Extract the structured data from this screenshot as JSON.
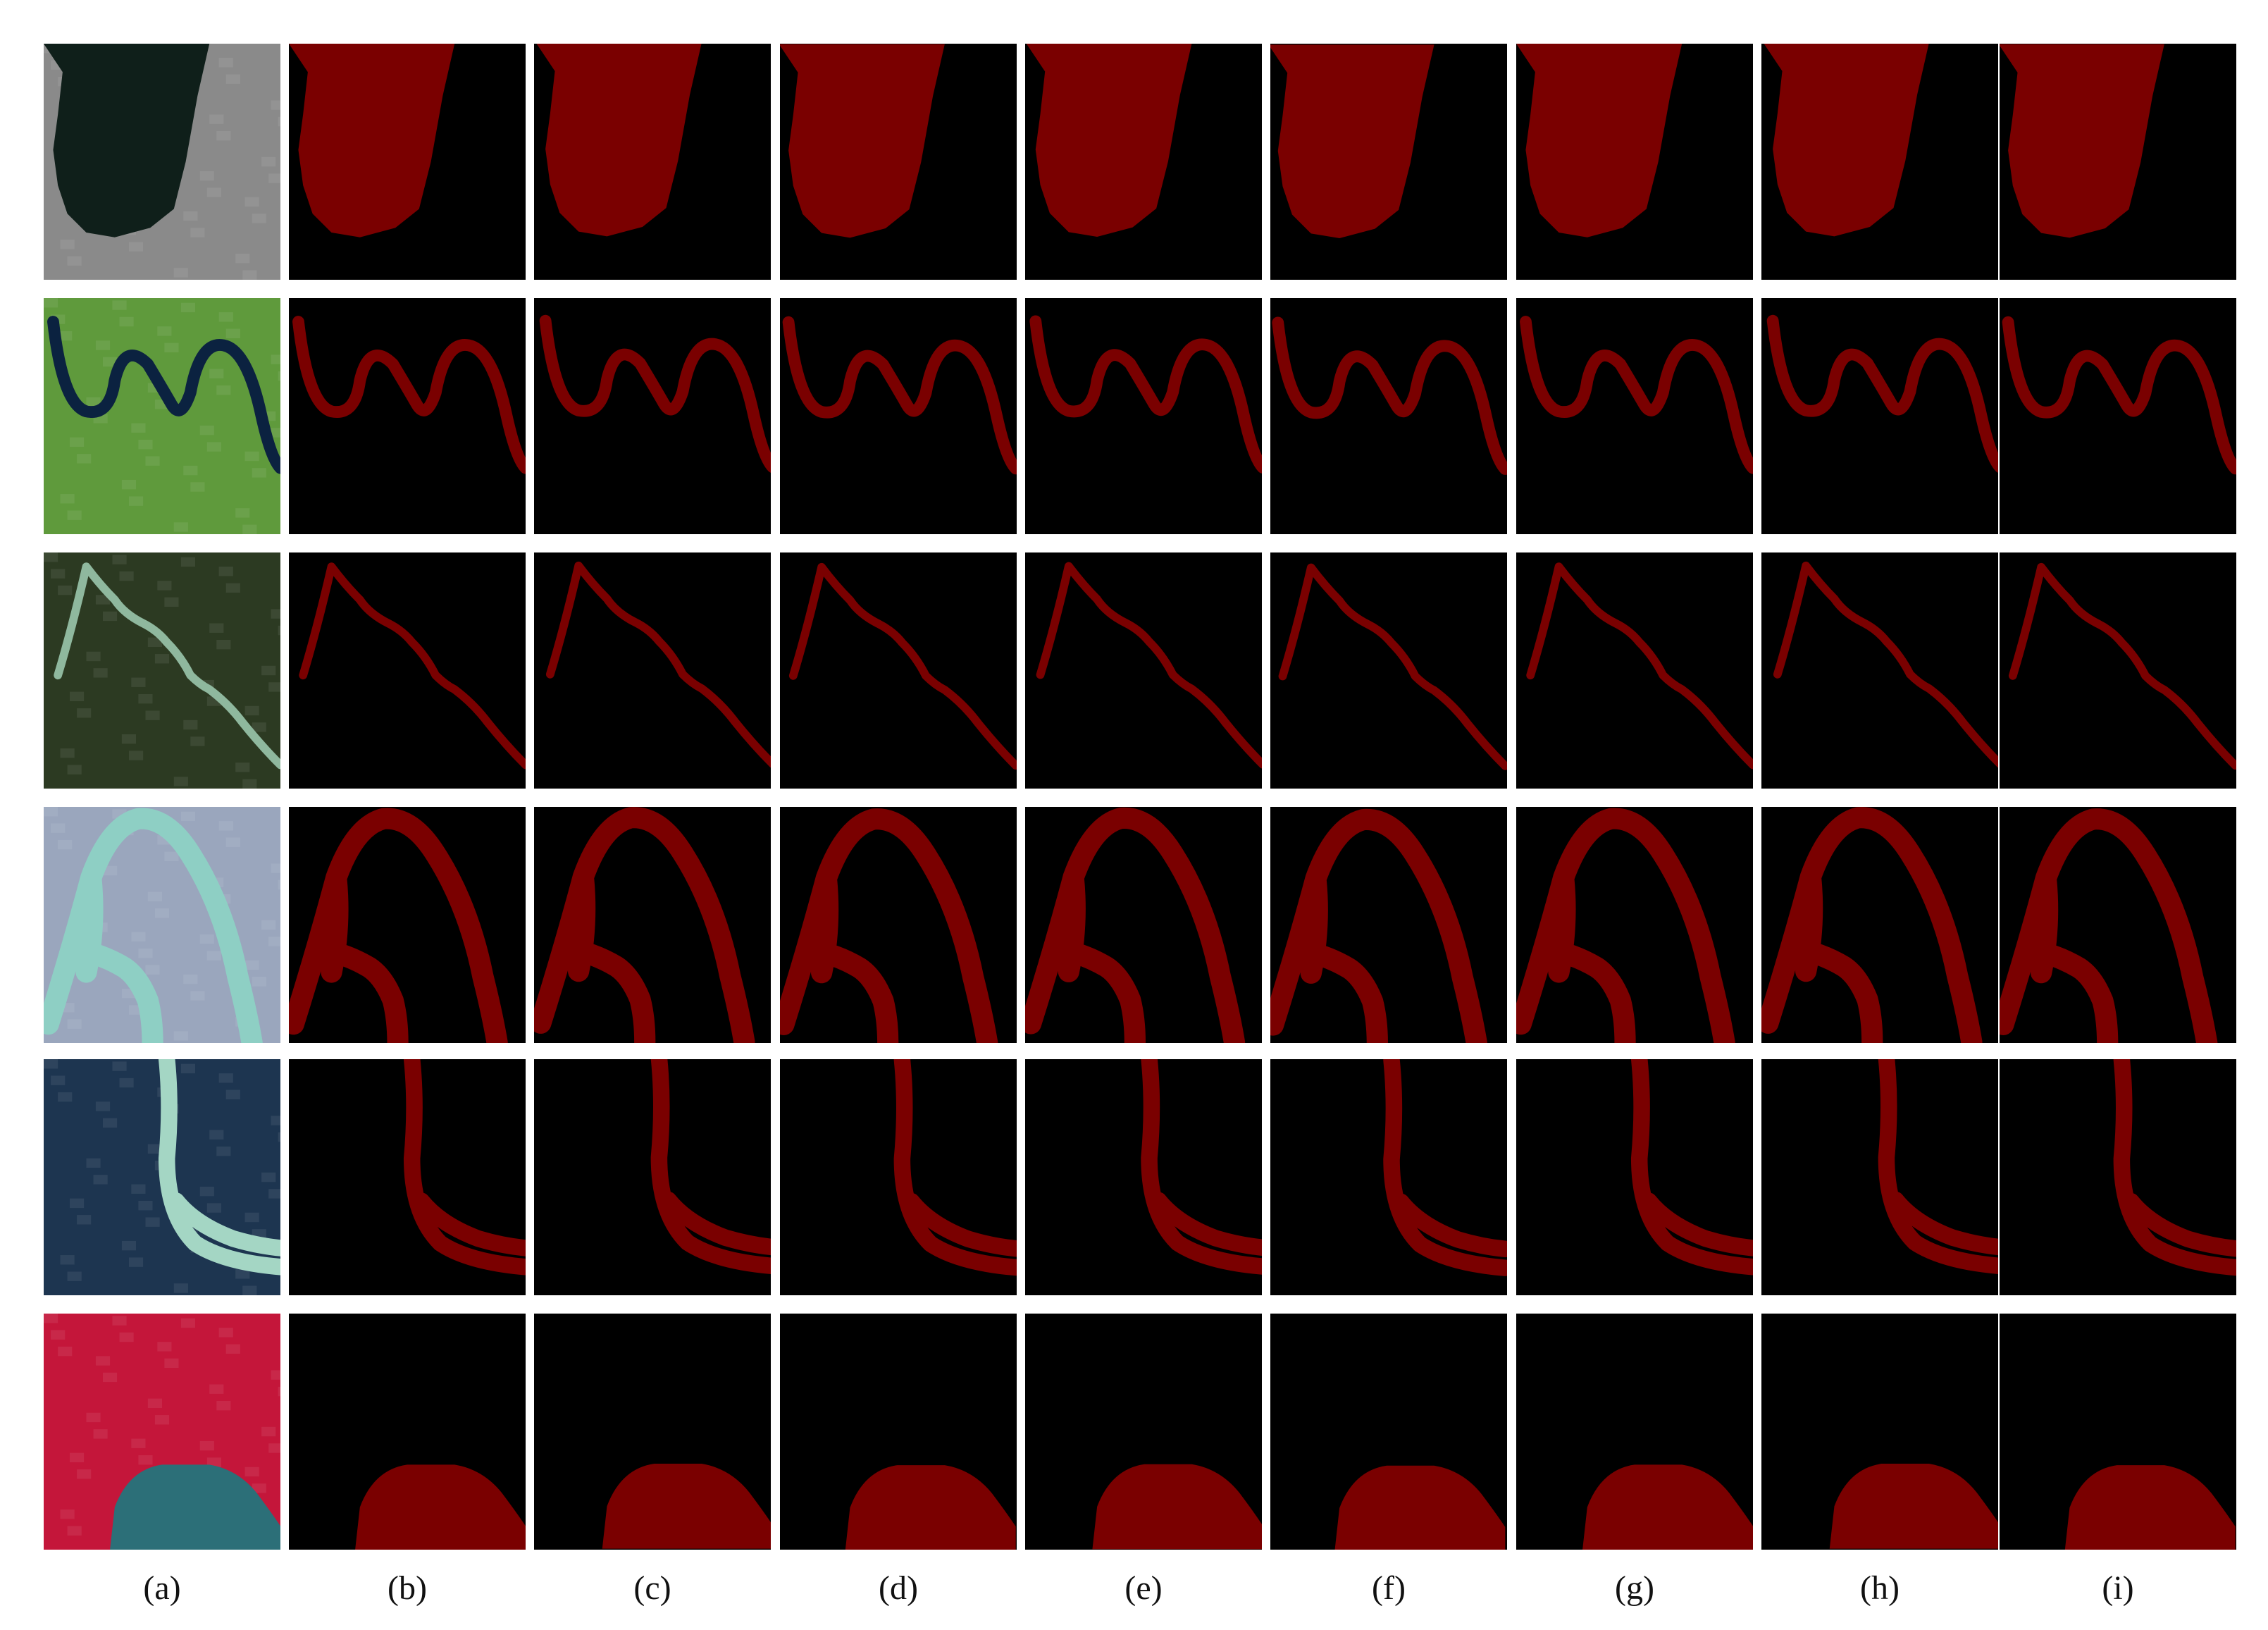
{
  "figure": {
    "columns": [
      {
        "id": "a",
        "label": "(a)",
        "kind": "source-image"
      },
      {
        "id": "b",
        "label": "(b)",
        "kind": "mask"
      },
      {
        "id": "c",
        "label": "(c)",
        "kind": "mask"
      },
      {
        "id": "d",
        "label": "(d)",
        "kind": "mask"
      },
      {
        "id": "e",
        "label": "(e)",
        "kind": "mask"
      },
      {
        "id": "f",
        "label": "(f)",
        "kind": "mask"
      },
      {
        "id": "g",
        "label": "(g)",
        "kind": "mask"
      },
      {
        "id": "h",
        "label": "(h)",
        "kind": "mask"
      },
      {
        "id": "i",
        "label": "(i)",
        "kind": "mask"
      }
    ],
    "rows": [
      {
        "id": "lake",
        "scene": "dark lake with gray rocky shore",
        "colors": {
          "water": "#0f1f1a",
          "land": "#8a8a8a"
        }
      },
      {
        "id": "meander",
        "scene": "dark river meandering through green farmland",
        "colors": {
          "water": "#0b2240",
          "land": "#5f9a3c"
        }
      },
      {
        "id": "valley",
        "scene": "pale river in dark green mountains",
        "colors": {
          "water": "#8fb89e",
          "land": "#2c3a22"
        }
      },
      {
        "id": "delta",
        "scene": "turquoise braided river on bluish plain",
        "colors": {
          "water": "#8ecfc4",
          "land": "#9aa6bd"
        }
      },
      {
        "id": "estuary",
        "scene": "turquoise river among dark aquaculture ponds",
        "colors": {
          "water": "#a4d6c4",
          "land": "#1d3550"
        }
      },
      {
        "id": "coast",
        "scene": "false-color red vegetation with blue water",
        "colors": {
          "water": "#2c6f78",
          "land": "#c4163a"
        }
      }
    ],
    "mask_colors": {
      "water": "#7a0000",
      "background": "#000000"
    }
  }
}
